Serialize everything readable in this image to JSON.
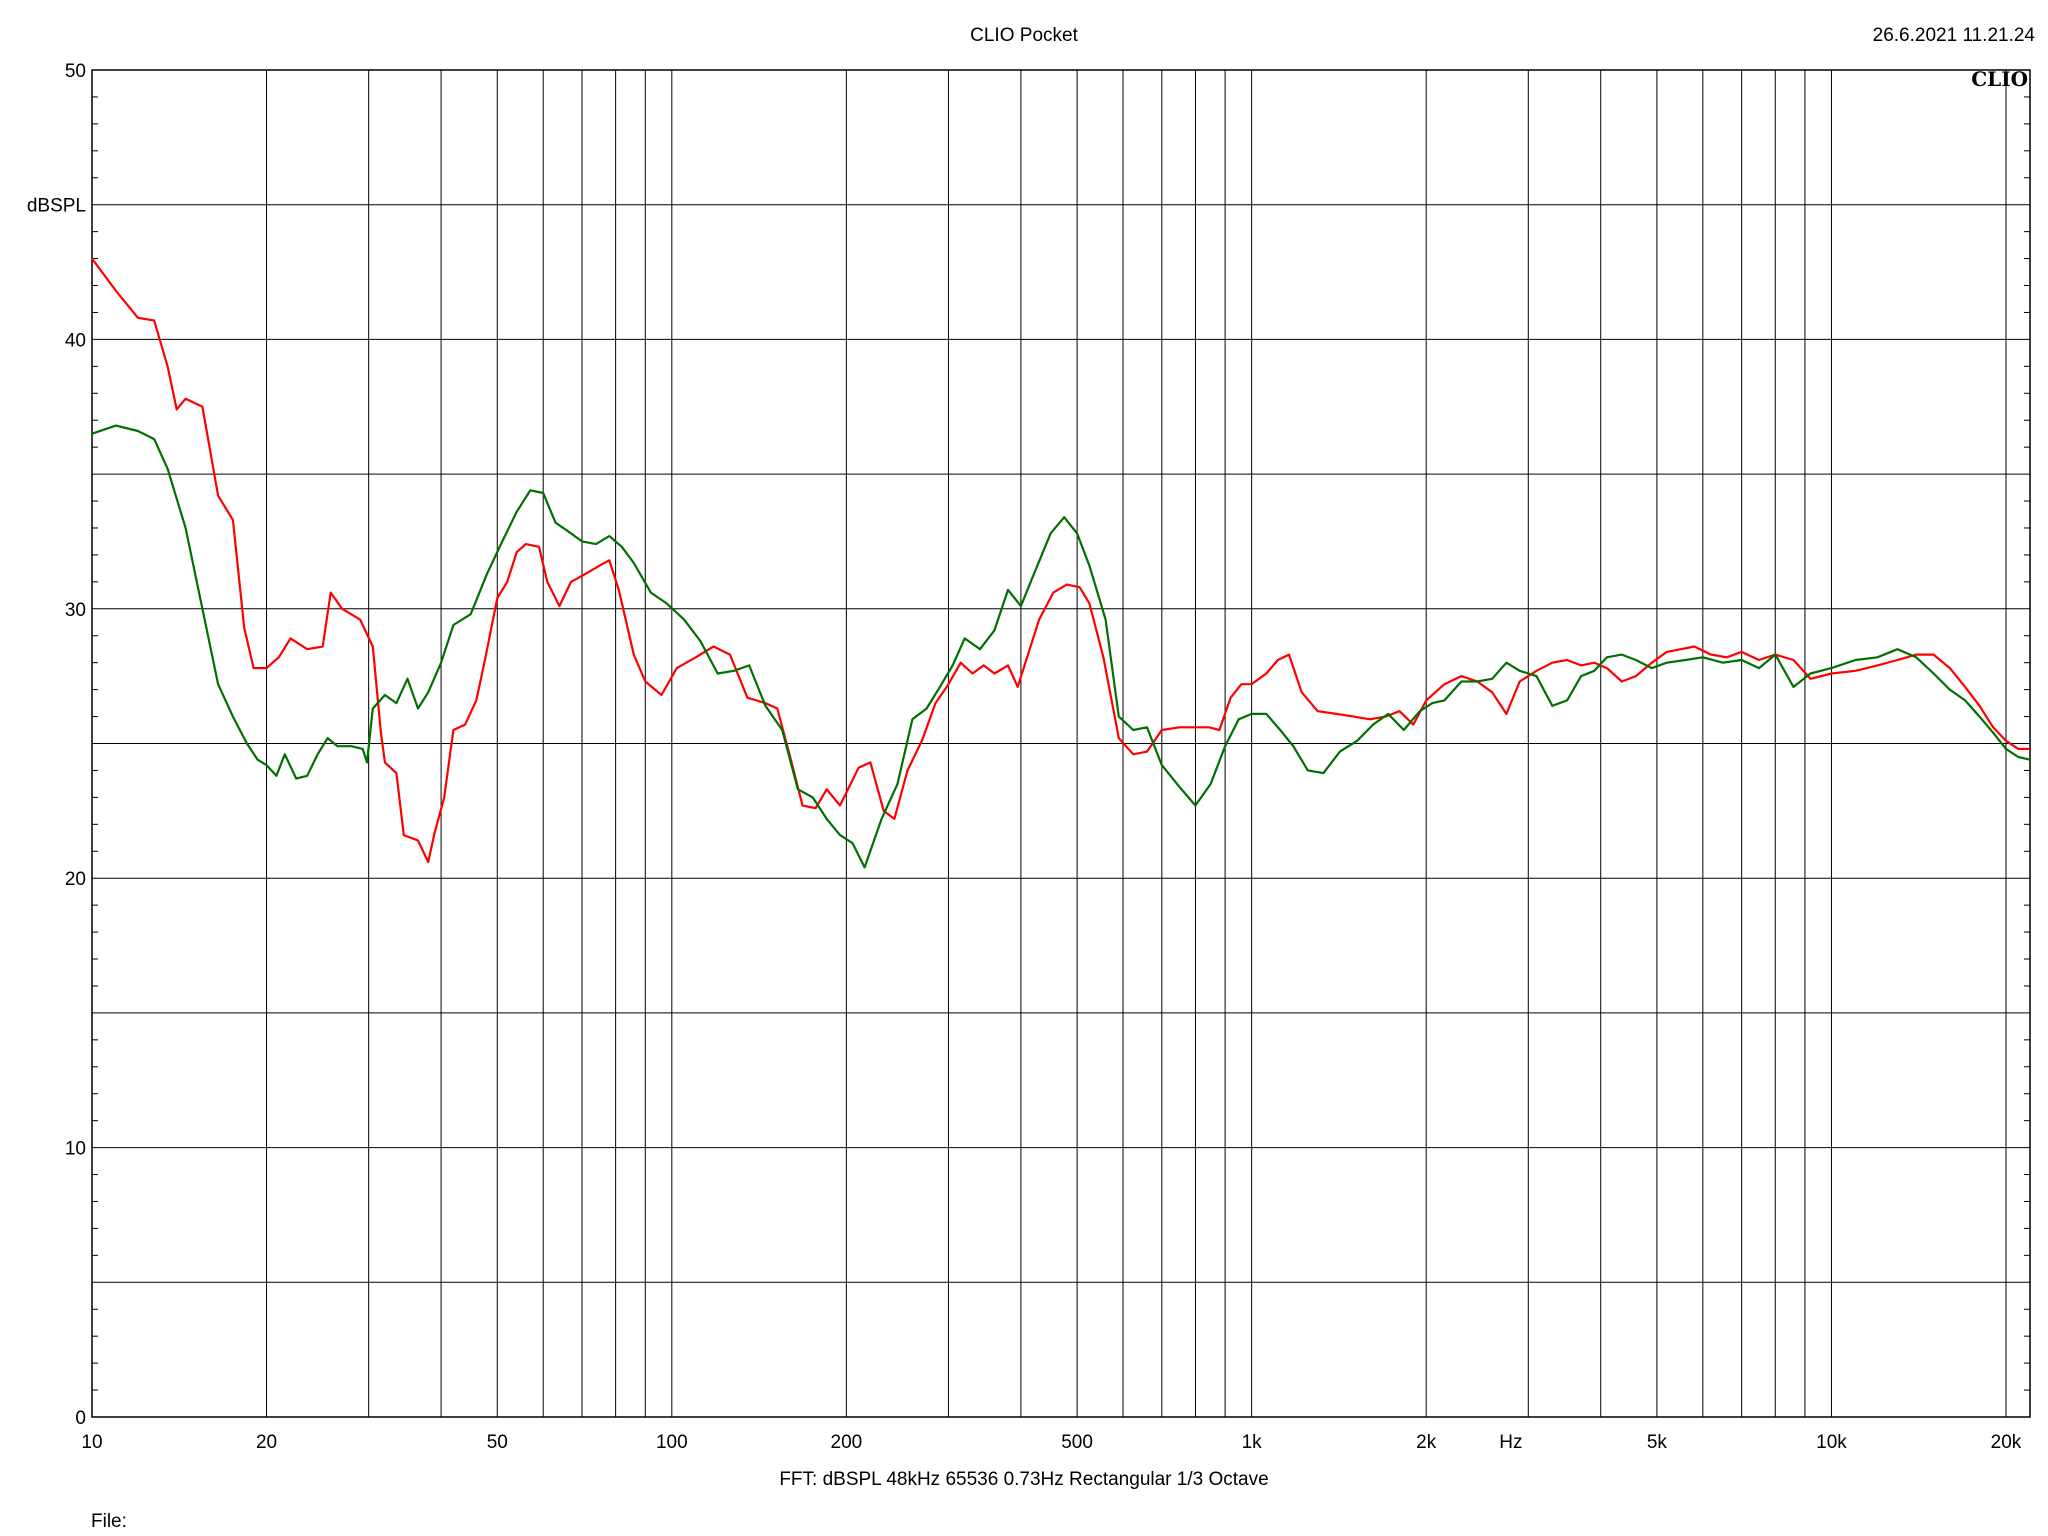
{
  "header": {
    "title": "CLIO Pocket",
    "timestamp": "26.6.2021 11.21.24",
    "brand": "CLIO"
  },
  "footer": {
    "settings": "FFT:  dBSPL  48kHz   65536  0.73Hz  Rectangular  1/3 Octave",
    "file_label": "File:"
  },
  "chart_data": {
    "type": "line",
    "title": "CLIO Pocket",
    "xscale": "log",
    "xlim": [
      10,
      22000
    ],
    "ylim": [
      0,
      50
    ],
    "xlabel": "Hz",
    "ylabel": "dBSPL",
    "x_ticks": [
      {
        "value": 10,
        "label": "10"
      },
      {
        "value": 20,
        "label": "20"
      },
      {
        "value": 50,
        "label": "50"
      },
      {
        "value": 100,
        "label": "100"
      },
      {
        "value": 200,
        "label": "200"
      },
      {
        "value": 500,
        "label": "500"
      },
      {
        "value": 1000,
        "label": "1k"
      },
      {
        "value": 2000,
        "label": "2k"
      },
      {
        "value": 5000,
        "label": "5k"
      },
      {
        "value": 10000,
        "label": "10k"
      },
      {
        "value": 20000,
        "label": "20k"
      }
    ],
    "y_ticks": [
      {
        "value": 0,
        "label": "0"
      },
      {
        "value": 10,
        "label": "10"
      },
      {
        "value": 20,
        "label": "20"
      },
      {
        "value": 30,
        "label": "30"
      },
      {
        "value": 40,
        "label": "40"
      },
      {
        "value": 50,
        "label": "50"
      }
    ],
    "grid": true,
    "series": [
      {
        "color": "#ff0000",
        "points": [
          [
            10,
            43.0
          ],
          [
            11,
            41.8
          ],
          [
            12,
            40.8
          ],
          [
            12.8,
            40.7
          ],
          [
            13.5,
            39.0
          ],
          [
            14,
            37.4
          ],
          [
            14.5,
            37.8
          ],
          [
            15.5,
            37.5
          ],
          [
            16.5,
            34.2
          ],
          [
            17.5,
            33.3
          ],
          [
            18.3,
            29.3
          ],
          [
            19,
            27.8
          ],
          [
            20,
            27.8
          ],
          [
            21,
            28.2
          ],
          [
            22,
            28.9
          ],
          [
            23.5,
            28.5
          ],
          [
            25,
            28.6
          ],
          [
            25.8,
            30.6
          ],
          [
            27,
            30.0
          ],
          [
            29,
            29.6
          ],
          [
            30.5,
            28.6
          ],
          [
            31.5,
            25.4
          ],
          [
            32,
            24.3
          ],
          [
            33.5,
            23.9
          ],
          [
            34.5,
            21.6
          ],
          [
            36.5,
            21.4
          ],
          [
            38,
            20.6
          ],
          [
            39,
            21.7
          ],
          [
            40.5,
            23.0
          ],
          [
            42,
            25.5
          ],
          [
            44,
            25.7
          ],
          [
            46,
            26.6
          ],
          [
            47.5,
            28.0
          ],
          [
            50,
            30.4
          ],
          [
            52,
            31.0
          ],
          [
            54,
            32.1
          ],
          [
            56,
            32.4
          ],
          [
            59,
            32.3
          ],
          [
            61,
            31.0
          ],
          [
            64,
            30.1
          ],
          [
            67,
            31.0
          ],
          [
            71,
            31.3
          ],
          [
            75,
            31.6
          ],
          [
            78,
            31.8
          ],
          [
            81,
            30.7
          ],
          [
            86,
            28.3
          ],
          [
            90,
            27.3
          ],
          [
            96,
            26.8
          ],
          [
            102,
            27.8
          ],
          [
            110,
            28.2
          ],
          [
            118,
            28.6
          ],
          [
            126,
            28.3
          ],
          [
            135,
            26.7
          ],
          [
            145,
            26.5
          ],
          [
            152,
            26.3
          ],
          [
            160,
            24.5
          ],
          [
            168,
            22.7
          ],
          [
            177,
            22.6
          ],
          [
            185,
            23.3
          ],
          [
            195,
            22.7
          ],
          [
            210,
            24.1
          ],
          [
            220,
            24.3
          ],
          [
            232,
            22.5
          ],
          [
            242,
            22.2
          ],
          [
            255,
            24.0
          ],
          [
            270,
            25.1
          ],
          [
            285,
            26.5
          ],
          [
            300,
            27.2
          ],
          [
            315,
            28.0
          ],
          [
            330,
            27.6
          ],
          [
            345,
            27.9
          ],
          [
            360,
            27.6
          ],
          [
            380,
            27.9
          ],
          [
            395,
            27.1
          ],
          [
            410,
            28.2
          ],
          [
            430,
            29.6
          ],
          [
            455,
            30.6
          ],
          [
            480,
            30.9
          ],
          [
            505,
            30.8
          ],
          [
            525,
            30.2
          ],
          [
            555,
            28.2
          ],
          [
            590,
            25.2
          ],
          [
            625,
            24.6
          ],
          [
            660,
            24.7
          ],
          [
            700,
            25.5
          ],
          [
            750,
            25.6
          ],
          [
            800,
            25.6
          ],
          [
            845,
            25.6
          ],
          [
            880,
            25.5
          ],
          [
            920,
            26.7
          ],
          [
            960,
            27.2
          ],
          [
            1000,
            27.2
          ],
          [
            1060,
            27.6
          ],
          [
            1110,
            28.1
          ],
          [
            1160,
            28.3
          ],
          [
            1220,
            26.9
          ],
          [
            1300,
            26.2
          ],
          [
            1400,
            26.1
          ],
          [
            1500,
            26.0
          ],
          [
            1600,
            25.9
          ],
          [
            1700,
            26.0
          ],
          [
            1800,
            26.2
          ],
          [
            1900,
            25.7
          ],
          [
            2000,
            26.6
          ],
          [
            2150,
            27.2
          ],
          [
            2300,
            27.5
          ],
          [
            2450,
            27.3
          ],
          [
            2600,
            26.9
          ],
          [
            2750,
            26.1
          ],
          [
            2900,
            27.3
          ],
          [
            3100,
            27.7
          ],
          [
            3300,
            28.0
          ],
          [
            3500,
            28.1
          ],
          [
            3700,
            27.9
          ],
          [
            3900,
            28.0
          ],
          [
            4100,
            27.8
          ],
          [
            4350,
            27.3
          ],
          [
            4600,
            27.5
          ],
          [
            4900,
            28.0
          ],
          [
            5200,
            28.4
          ],
          [
            5500,
            28.5
          ],
          [
            5800,
            28.6
          ],
          [
            6200,
            28.3
          ],
          [
            6600,
            28.2
          ],
          [
            7000,
            28.4
          ],
          [
            7500,
            28.1
          ],
          [
            8000,
            28.3
          ],
          [
            8600,
            28.1
          ],
          [
            9200,
            27.4
          ],
          [
            10000,
            27.6
          ],
          [
            11000,
            27.7
          ],
          [
            12000,
            27.9
          ],
          [
            13000,
            28.1
          ],
          [
            14000,
            28.3
          ],
          [
            15000,
            28.3
          ],
          [
            16000,
            27.8
          ],
          [
            17000,
            27.1
          ],
          [
            18000,
            26.4
          ],
          [
            19000,
            25.6
          ],
          [
            20000,
            25.1
          ],
          [
            21000,
            24.8
          ],
          [
            22000,
            24.8
          ]
        ]
      },
      {
        "color": "#007000",
        "points": [
          [
            10,
            36.5
          ],
          [
            11,
            36.8
          ],
          [
            12,
            36.6
          ],
          [
            12.8,
            36.3
          ],
          [
            13.5,
            35.2
          ],
          [
            14.5,
            33.0
          ],
          [
            15.5,
            30.0
          ],
          [
            16.5,
            27.2
          ],
          [
            17.5,
            26.0
          ],
          [
            18.5,
            25.0
          ],
          [
            19.3,
            24.4
          ],
          [
            20,
            24.2
          ],
          [
            20.8,
            23.8
          ],
          [
            21.5,
            24.6
          ],
          [
            22.5,
            23.7
          ],
          [
            23.5,
            23.8
          ],
          [
            24.5,
            24.6
          ],
          [
            25.5,
            25.2
          ],
          [
            26.5,
            24.9
          ],
          [
            28,
            24.9
          ],
          [
            29.3,
            24.8
          ],
          [
            29.8,
            24.3
          ],
          [
            30.5,
            26.3
          ],
          [
            32,
            26.8
          ],
          [
            33.5,
            26.5
          ],
          [
            35,
            27.4
          ],
          [
            36.5,
            26.3
          ],
          [
            38,
            26.9
          ],
          [
            40,
            28.0
          ],
          [
            42,
            29.4
          ],
          [
            45,
            29.8
          ],
          [
            48,
            31.3
          ],
          [
            51,
            32.5
          ],
          [
            54,
            33.6
          ],
          [
            57,
            34.4
          ],
          [
            60,
            34.3
          ],
          [
            63,
            33.2
          ],
          [
            66,
            32.9
          ],
          [
            70,
            32.5
          ],
          [
            74,
            32.4
          ],
          [
            78,
            32.7
          ],
          [
            82,
            32.3
          ],
          [
            86,
            31.7
          ],
          [
            92,
            30.6
          ],
          [
            98,
            30.2
          ],
          [
            105,
            29.6
          ],
          [
            112,
            28.8
          ],
          [
            120,
            27.6
          ],
          [
            128,
            27.7
          ],
          [
            136,
            27.9
          ],
          [
            145,
            26.4
          ],
          [
            155,
            25.5
          ],
          [
            165,
            23.3
          ],
          [
            175,
            23.0
          ],
          [
            185,
            22.2
          ],
          [
            195,
            21.6
          ],
          [
            205,
            21.3
          ],
          [
            215,
            20.4
          ],
          [
            230,
            22.2
          ],
          [
            245,
            23.5
          ],
          [
            260,
            25.9
          ],
          [
            275,
            26.3
          ],
          [
            290,
            27.1
          ],
          [
            305,
            27.9
          ],
          [
            320,
            28.9
          ],
          [
            340,
            28.5
          ],
          [
            360,
            29.2
          ],
          [
            380,
            30.7
          ],
          [
            400,
            30.1
          ],
          [
            425,
            31.5
          ],
          [
            450,
            32.8
          ],
          [
            475,
            33.4
          ],
          [
            500,
            32.8
          ],
          [
            525,
            31.6
          ],
          [
            560,
            29.6
          ],
          [
            590,
            26.0
          ],
          [
            625,
            25.5
          ],
          [
            660,
            25.6
          ],
          [
            700,
            24.2
          ],
          [
            750,
            23.4
          ],
          [
            800,
            22.7
          ],
          [
            850,
            23.5
          ],
          [
            900,
            24.9
          ],
          [
            950,
            25.9
          ],
          [
            1000,
            26.1
          ],
          [
            1060,
            26.1
          ],
          [
            1120,
            25.5
          ],
          [
            1180,
            24.9
          ],
          [
            1250,
            24.0
          ],
          [
            1330,
            23.9
          ],
          [
            1420,
            24.7
          ],
          [
            1520,
            25.1
          ],
          [
            1620,
            25.7
          ],
          [
            1720,
            26.1
          ],
          [
            1830,
            25.5
          ],
          [
            1950,
            26.2
          ],
          [
            2050,
            26.5
          ],
          [
            2150,
            26.6
          ],
          [
            2300,
            27.3
          ],
          [
            2450,
            27.3
          ],
          [
            2600,
            27.4
          ],
          [
            2750,
            28.0
          ],
          [
            2900,
            27.7
          ],
          [
            3100,
            27.5
          ],
          [
            3300,
            26.4
          ],
          [
            3500,
            26.6
          ],
          [
            3700,
            27.5
          ],
          [
            3900,
            27.7
          ],
          [
            4100,
            28.2
          ],
          [
            4350,
            28.3
          ],
          [
            4600,
            28.1
          ],
          [
            4900,
            27.8
          ],
          [
            5200,
            28.0
          ],
          [
            5600,
            28.1
          ],
          [
            6000,
            28.2
          ],
          [
            6500,
            28.0
          ],
          [
            7000,
            28.1
          ],
          [
            7500,
            27.8
          ],
          [
            8000,
            28.3
          ],
          [
            8600,
            27.1
          ],
          [
            9200,
            27.6
          ],
          [
            10000,
            27.8
          ],
          [
            11000,
            28.1
          ],
          [
            12000,
            28.2
          ],
          [
            13000,
            28.5
          ],
          [
            14000,
            28.2
          ],
          [
            15000,
            27.6
          ],
          [
            16000,
            27.0
          ],
          [
            17000,
            26.6
          ],
          [
            18000,
            26.0
          ],
          [
            19000,
            25.4
          ],
          [
            20000,
            24.8
          ],
          [
            21000,
            24.5
          ],
          [
            22000,
            24.4
          ]
        ]
      }
    ]
  }
}
